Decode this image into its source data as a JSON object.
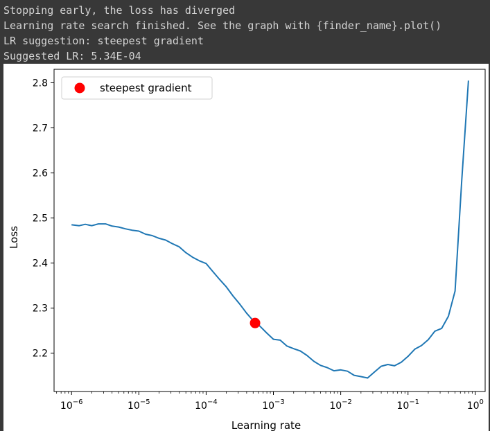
{
  "console": {
    "lines": [
      "Stopping early, the loss has diverged",
      "Learning rate search finished. See the graph with {finder_name}.plot()",
      "LR suggestion: steepest gradient",
      "Suggested LR: 5.34E-04"
    ]
  },
  "chart_data": {
    "type": "line",
    "xlabel": "Learning rate",
    "ylabel": "Loss",
    "xscale": "log",
    "xlim": [
      5.5e-07,
      1.4
    ],
    "ylim": [
      2.115,
      2.83
    ],
    "yticks": [
      2.2,
      2.3,
      2.4,
      2.5,
      2.6,
      2.7,
      2.8
    ],
    "ytick_labels": [
      "2.2",
      "2.3",
      "2.4",
      "2.5",
      "2.6",
      "2.7",
      "2.8"
    ],
    "xticks": [
      {
        "base": "10",
        "exp": "−6"
      },
      {
        "base": "10",
        "exp": "−5"
      },
      {
        "base": "10",
        "exp": "−4"
      },
      {
        "base": "10",
        "exp": "−3"
      },
      {
        "base": "10",
        "exp": "−2"
      },
      {
        "base": "10",
        "exp": "−1"
      },
      {
        "base": "10",
        "exp": "0"
      }
    ],
    "xtick_values": [
      1e-06,
      1e-05,
      0.0001,
      0.001,
      0.01,
      0.1,
      1
    ],
    "series": [
      {
        "color": "#1f77b4",
        "x": [
          1e-06,
          1.3e-06,
          1.6e-06,
          2e-06,
          2.5e-06,
          3.2e-06,
          4e-06,
          5e-06,
          6.3e-06,
          7.9e-06,
          1e-05,
          1.26e-05,
          1.58e-05,
          2e-05,
          2.51e-05,
          3.16e-05,
          3.98e-05,
          5.01e-05,
          6.3e-05,
          7.94e-05,
          0.0001,
          0.000126,
          0.000158,
          0.0002,
          0.000251,
          0.000316,
          0.000398,
          0.000501,
          0.00063,
          0.000794,
          0.001,
          0.00126,
          0.00158,
          0.002,
          0.00251,
          0.00316,
          0.00398,
          0.00501,
          0.0063,
          0.00794,
          0.01,
          0.0126,
          0.0158,
          0.02,
          0.0251,
          0.0316,
          0.0398,
          0.0501,
          0.063,
          0.0794,
          0.1,
          0.126,
          0.158,
          0.2,
          0.251,
          0.316,
          0.398,
          0.5,
          0.63,
          0.79
        ],
        "y": [
          2.485,
          2.483,
          2.486,
          2.483,
          2.487,
          2.487,
          2.482,
          2.48,
          2.476,
          2.473,
          2.471,
          2.464,
          2.461,
          2.455,
          2.451,
          2.443,
          2.436,
          2.423,
          2.413,
          2.405,
          2.399,
          2.381,
          2.364,
          2.347,
          2.327,
          2.309,
          2.289,
          2.272,
          2.26,
          2.245,
          2.231,
          2.229,
          2.216,
          2.21,
          2.205,
          2.195,
          2.182,
          2.173,
          2.168,
          2.161,
          2.163,
          2.16,
          2.151,
          2.148,
          2.145,
          2.158,
          2.171,
          2.175,
          2.172,
          2.18,
          2.193,
          2.209,
          2.217,
          2.23,
          2.249,
          2.255,
          2.282,
          2.338,
          2.585,
          2.805
        ]
      }
    ],
    "markers": [
      {
        "x": 0.000534,
        "y": 2.267,
        "color": "#ff0000",
        "label": "steepest gradient"
      }
    ],
    "legend": {
      "placement": "upper left"
    }
  }
}
